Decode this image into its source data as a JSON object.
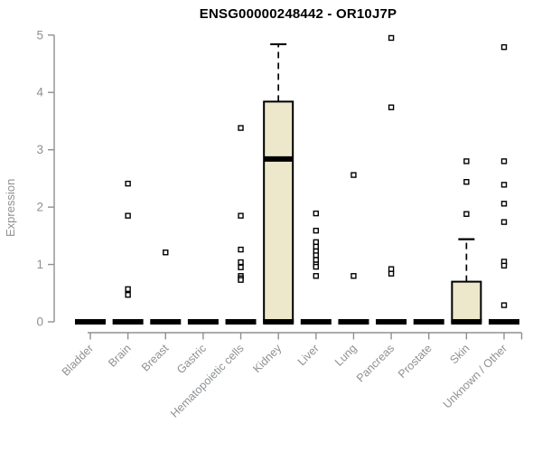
{
  "title": "ENSG00000248442 - OR10J7P",
  "chart_data": {
    "type": "boxplot",
    "title": "ENSG00000248442 - OR10J7P",
    "xlabel": "",
    "ylabel": "Expression",
    "ylim": [
      0,
      5
    ],
    "yticks": [
      0,
      1,
      2,
      3,
      4,
      5
    ],
    "grid": false,
    "legend": null,
    "categories": [
      "Bladder",
      "Brain",
      "Breast",
      "Gastric",
      "Hematopoietic cells",
      "Kidney",
      "Liver",
      "Lung",
      "Pancreas",
      "Prostate",
      "Skin",
      "Unknown / Other"
    ],
    "series": [
      {
        "category": "Bladder",
        "q1": 0,
        "median": 0,
        "q3": 0,
        "whisker_low": 0,
        "whisker_high": 0,
        "outliers": []
      },
      {
        "category": "Brain",
        "q1": 0,
        "median": 0,
        "q3": 0,
        "whisker_low": 0,
        "whisker_high": 0,
        "outliers": [
          2.41,
          1.85,
          0.57,
          0.47
        ]
      },
      {
        "category": "Breast",
        "q1": 0,
        "median": 0,
        "q3": 0,
        "whisker_low": 0,
        "whisker_high": 0,
        "outliers": [
          1.21
        ]
      },
      {
        "category": "Gastric",
        "q1": 0,
        "median": 0,
        "q3": 0,
        "whisker_low": 0,
        "whisker_high": 0,
        "outliers": []
      },
      {
        "category": "Hematopoietic cells",
        "q1": 0,
        "median": 0,
        "q3": 0,
        "whisker_low": 0,
        "whisker_high": 0,
        "outliers": [
          3.38,
          1.85,
          1.26,
          1.04,
          0.95,
          0.8,
          0.76,
          0.73
        ]
      },
      {
        "category": "Kidney",
        "q1": 0,
        "median": 2.84,
        "q3": 3.84,
        "whisker_low": 0,
        "whisker_high": 4.84,
        "outliers": []
      },
      {
        "category": "Liver",
        "q1": 0,
        "median": 0,
        "q3": 0,
        "whisker_low": 0,
        "whisker_high": 0,
        "outliers": [
          1.89,
          1.59,
          1.39,
          1.31,
          1.23,
          1.16,
          1.08,
          1.0,
          0.96,
          0.8
        ]
      },
      {
        "category": "Lung",
        "q1": 0,
        "median": 0,
        "q3": 0,
        "whisker_low": 0,
        "whisker_high": 0,
        "outliers": [
          2.56,
          0.8
        ]
      },
      {
        "category": "Pancreas",
        "q1": 0,
        "median": 0,
        "q3": 0,
        "whisker_low": 0,
        "whisker_high": 0,
        "outliers": [
          4.95,
          3.74,
          0.92,
          0.84
        ]
      },
      {
        "category": "Prostate",
        "q1": 0,
        "median": 0,
        "q3": 0,
        "whisker_low": 0,
        "whisker_high": 0,
        "outliers": []
      },
      {
        "category": "Skin",
        "q1": 0,
        "median": 0,
        "q3": 0.7,
        "whisker_low": 0,
        "whisker_high": 1.44,
        "outliers": [
          2.8,
          2.44,
          1.88
        ]
      },
      {
        "category": "Unknown / Other",
        "q1": 0,
        "median": 0,
        "q3": 0,
        "whisker_low": 0,
        "whisker_high": 0,
        "outliers": [
          4.79,
          2.8,
          2.39,
          2.06,
          1.74,
          1.05,
          0.98,
          0.29
        ]
      }
    ],
    "colors": {
      "background": "#FFFFFF",
      "box_fill": "#EDE7CB",
      "box_border": "#000000",
      "median": "#000000",
      "whisker": "#000000",
      "outlier_stroke": "#000000",
      "outlier_fill": "#FFFFFF",
      "axis": "#8E9093",
      "tick_label": "#8E9093",
      "title": "#000000"
    }
  }
}
